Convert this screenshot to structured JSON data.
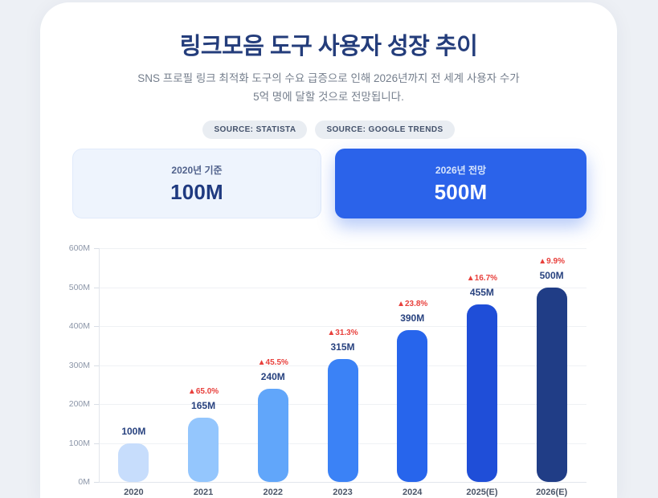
{
  "header": {
    "title": "링크모음 도구 사용자 성장 추이",
    "subtitle": "SNS 프로필 링크 최적화 도구의 수요 급증으로 인해 2026년까지 전 세계 사용자 수가 5억 명에 달할 것으로 전망됩니다.",
    "sources": [
      {
        "label": "SOURCE: STATISTA"
      },
      {
        "label": "SOURCE: GOOGLE TRENDS"
      }
    ]
  },
  "stats": {
    "baseline": {
      "label": "2020년 기준",
      "value": "100M"
    },
    "forecast": {
      "label": "2026년 전망",
      "value": "500M"
    }
  },
  "chart_data": {
    "type": "bar",
    "title": "링크모음 도구 사용자 성장 추이",
    "xlabel": "",
    "ylabel": "",
    "categories": [
      "2020",
      "2021",
      "2022",
      "2023",
      "2024",
      "2025(E)",
      "2026(E)"
    ],
    "values": [
      100,
      165,
      240,
      315,
      390,
      455,
      500
    ],
    "value_labels": [
      "100M",
      "165M",
      "240M",
      "315M",
      "390M",
      "455M",
      "500M"
    ],
    "growth_labels": [
      "",
      "▲65.0%",
      "▲45.5%",
      "▲31.3%",
      "▲23.8%",
      "▲16.7%",
      "▲9.9%"
    ],
    "bar_colors": [
      "#C7DDFC",
      "#94C6FD",
      "#61A6FA",
      "#3B82F6",
      "#2765EC",
      "#1F4ED8",
      "#203D86"
    ],
    "y_ticks": [
      "600M",
      "500M",
      "400M",
      "300M",
      "200M",
      "100M",
      "0M"
    ],
    "ylim": [
      0,
      600
    ],
    "grid": true,
    "legend": "none"
  },
  "colors": {
    "page_background": "#EDF0F5",
    "card_background": "#FFFFFF",
    "title_navy": "#243D7B",
    "accent_blue": "#2B63EA",
    "growth_red": "#E8403C",
    "value_navy": "#28427F"
  }
}
